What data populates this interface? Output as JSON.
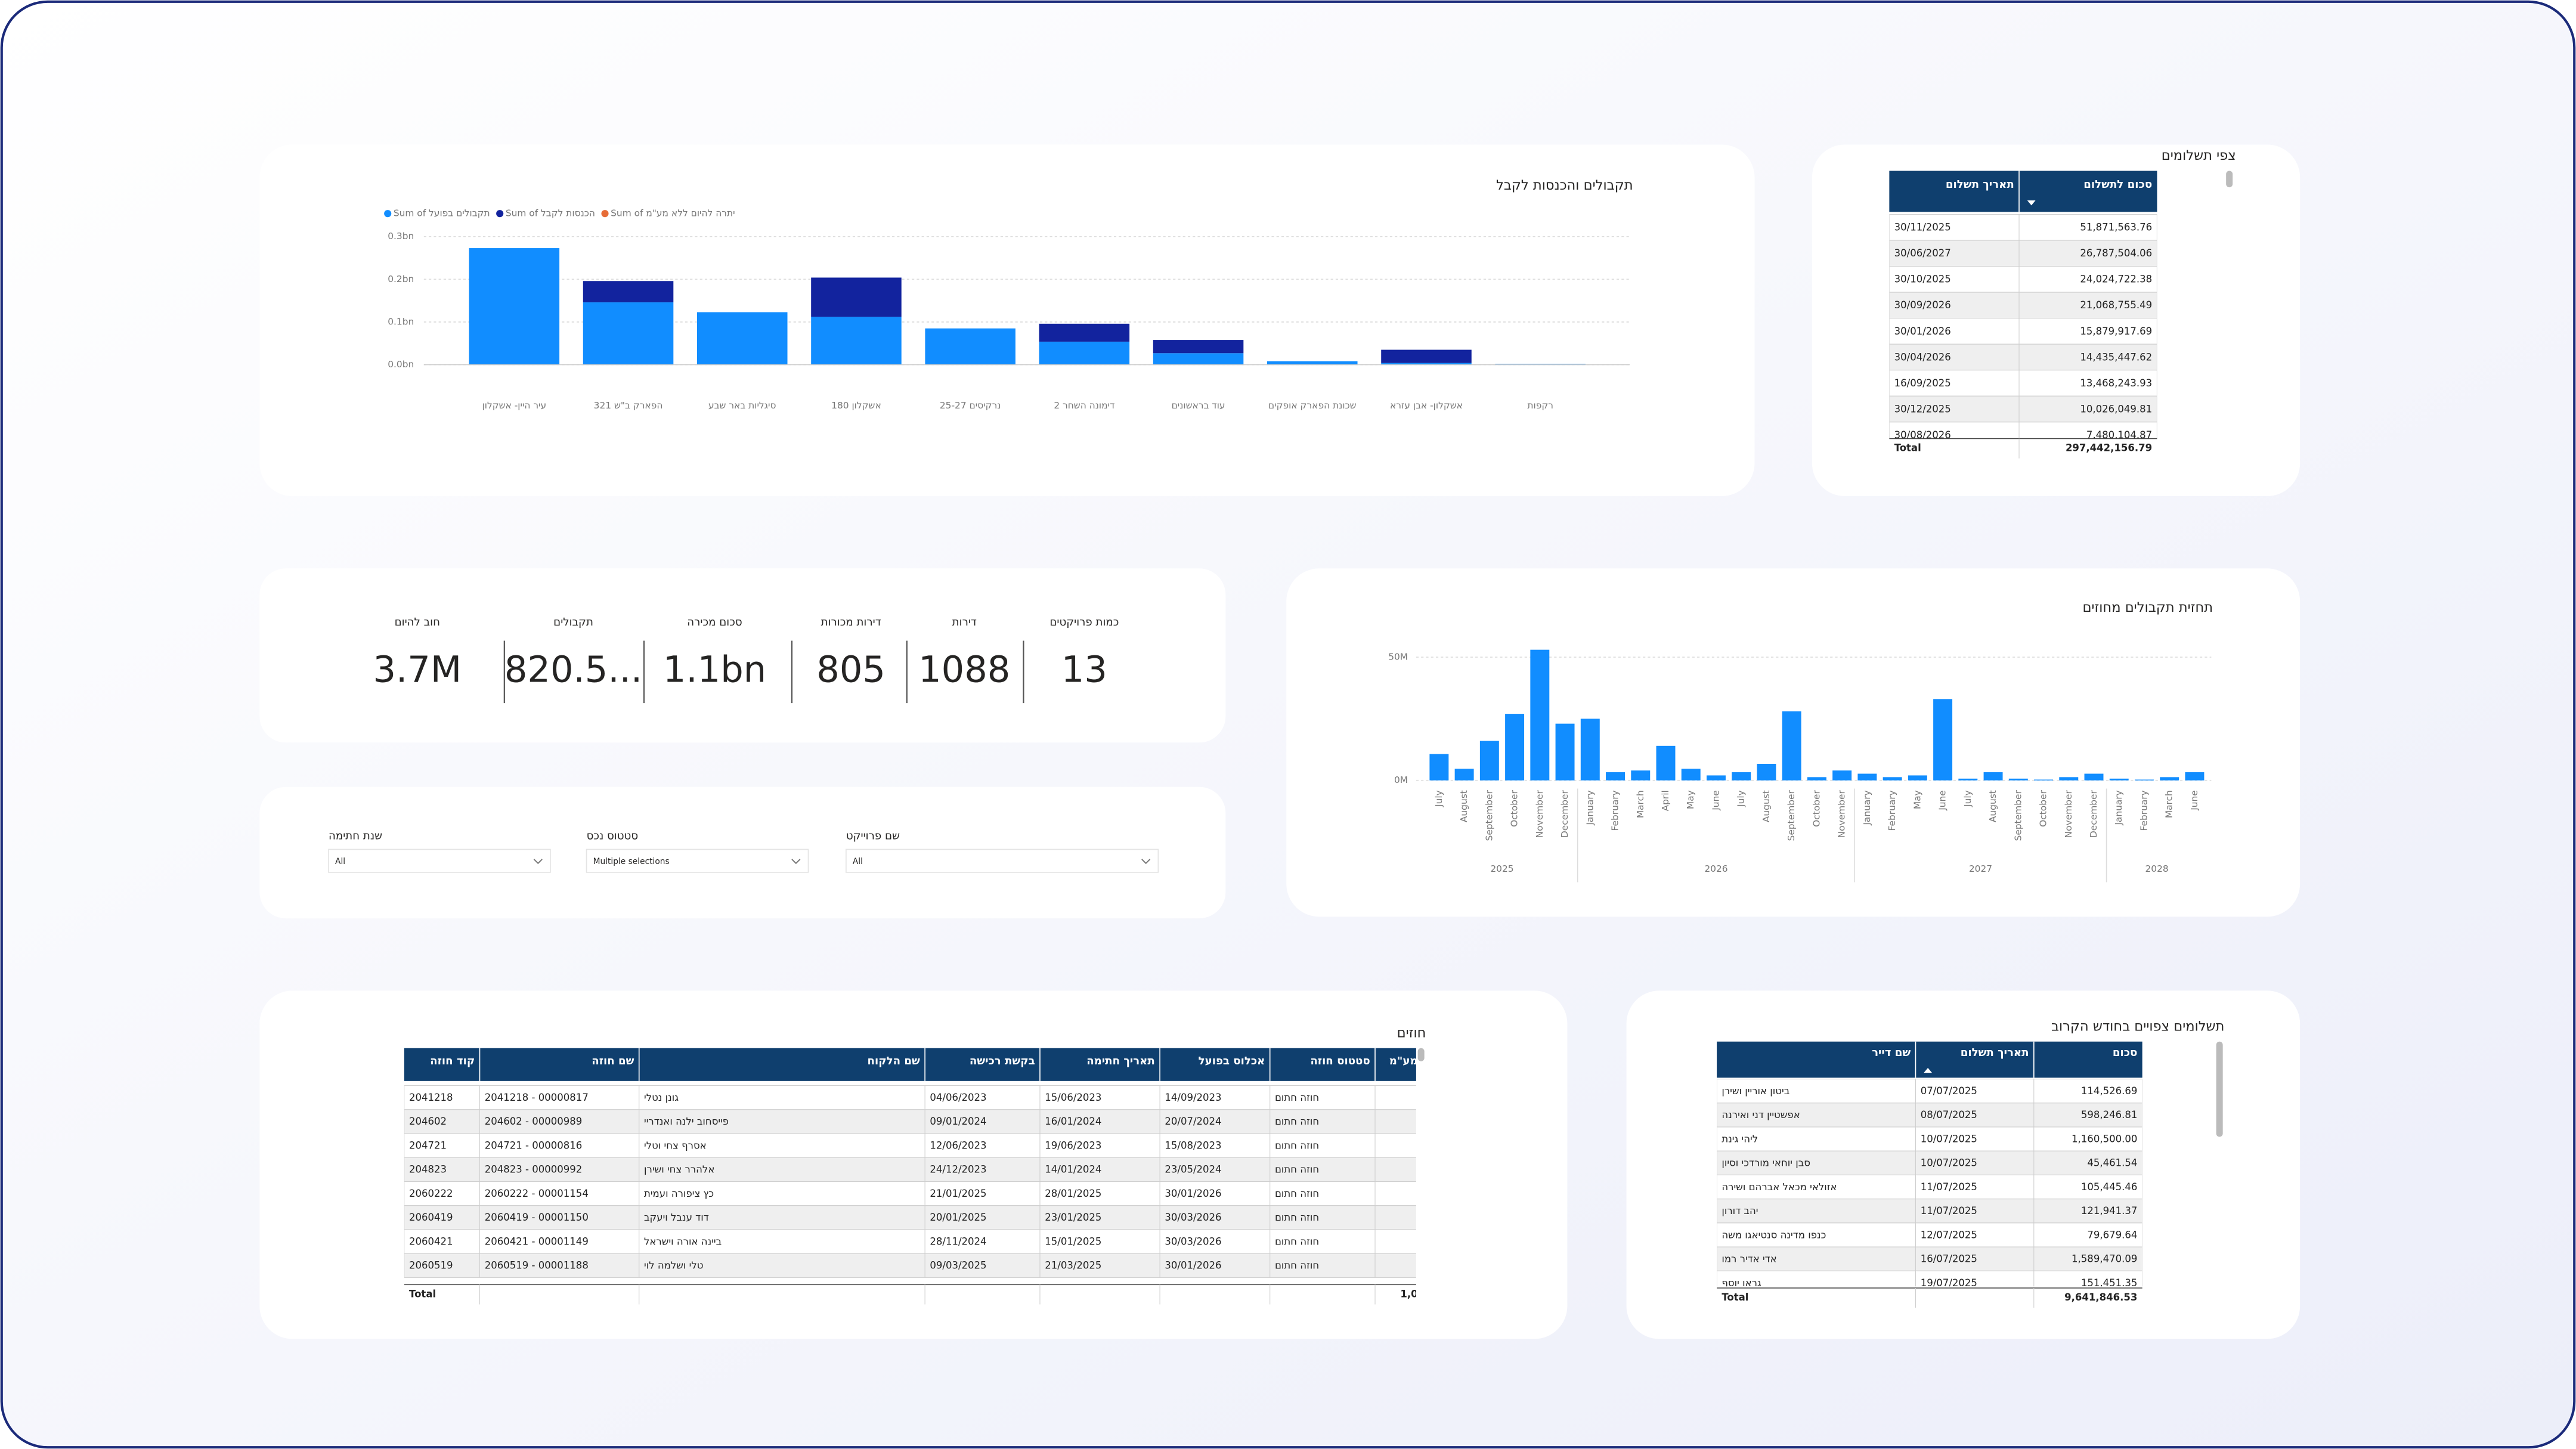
{
  "chart_data": [
    {
      "type": "bar",
      "stacked": true,
      "title": "תקבולים והכנסות לקבל",
      "categories": [
        "עיר היין- אשקלון",
        "הפארק ב\"ש 321",
        "סיגליות באר שבע",
        "אשקלון 180",
        "נרקיסים 25-27",
        "דימונה השחר 2",
        "עוד בראשונים",
        "שכונת הפארק אופקים",
        "אשקלון- אבן עזרא",
        "רקפות"
      ],
      "series": [
        {
          "name": "Sum of תקבולים בפועל",
          "color": "#118DFF",
          "values": [
            0.273,
            0.146,
            0.123,
            0.112,
            0.085,
            0.054,
            0.027,
            0.008,
            0.004,
            0.002
          ]
        },
        {
          "name": "Sum of הכנסות לקבל",
          "color": "#12239E",
          "values": [
            0,
            0.05,
            0,
            0.092,
            0,
            0.042,
            0.031,
            0,
            0.031,
            0
          ]
        },
        {
          "name": "Sum of יתרה להיום ללא מע\"מ",
          "color": "#E66C37",
          "values": [
            0,
            0,
            0,
            0,
            0,
            0,
            0,
            0,
            0,
            0
          ]
        }
      ],
      "ylim": [
        0,
        0.3
      ],
      "yticks": [
        {
          "value": 0,
          "label": "0.0bn"
        },
        {
          "value": 0.1,
          "label": "0.1bn"
        },
        {
          "value": 0.2,
          "label": "0.2bn"
        },
        {
          "value": 0.3,
          "label": "0.3bn"
        }
      ],
      "grid": true,
      "legend": "top-left"
    },
    {
      "type": "bar",
      "title": "תחזית תקבולים מחוזים",
      "color": "#118DFF",
      "groups": [
        {
          "label": "2025",
          "categories": [
            "July",
            "August",
            "September",
            "October",
            "November",
            "December"
          ],
          "values": [
            10.7,
            4.7,
            16,
            27,
            53,
            23
          ]
        },
        {
          "label": "2026",
          "categories": [
            "January",
            "February",
            "March",
            "April",
            "May",
            "June",
            "July",
            "August",
            "September",
            "October",
            "November"
          ],
          "values": [
            25,
            3.3,
            4,
            14,
            4.7,
            2,
            3.3,
            6.7,
            28,
            1.3,
            4
          ]
        },
        {
          "label": "2027",
          "categories": [
            "January",
            "February",
            "May",
            "June",
            "July",
            "August",
            "September",
            "October",
            "November",
            "December"
          ],
          "values": [
            2.7,
            1.3,
            2,
            33,
            0.7,
            3.3,
            0.7,
            0.3,
            1.3,
            2.7
          ]
        },
        {
          "label": "2028",
          "categories": [
            "January",
            "February",
            "March",
            "June"
          ],
          "values": [
            0.7,
            0.3,
            1.3,
            3.3
          ]
        }
      ],
      "ylim": [
        0,
        55
      ],
      "yticks": [
        {
          "value": 0,
          "label": "0M"
        },
        {
          "value": 50,
          "label": "50M"
        }
      ],
      "grid": true
    }
  ],
  "payments": {
    "title": "צפי תשלומים",
    "columns": [
      "תאריך תשלום",
      "סכום לתשלום"
    ],
    "rows": [
      [
        "30/11/2025",
        "51,871,563.76"
      ],
      [
        "30/06/2027",
        "26,787,504.06"
      ],
      [
        "30/10/2025",
        "24,024,722.38"
      ],
      [
        "30/09/2026",
        "21,068,755.49"
      ],
      [
        "30/01/2026",
        "15,879,917.69"
      ],
      [
        "30/04/2026",
        "14,435,447.62"
      ],
      [
        "16/09/2025",
        "13,468,243.93"
      ],
      [
        "30/12/2025",
        "10,026,049.81"
      ],
      [
        "30/08/2026",
        "7,480,104.87"
      ]
    ],
    "total_label": "Total",
    "total_value": "297,442,156.79"
  },
  "kpis": [
    {
      "label": "כמות פרויקטים",
      "value": "13"
    },
    {
      "label": "דירות",
      "value": "1088"
    },
    {
      "label": "דירות מכורות",
      "value": "805"
    },
    {
      "label": "סכום מכירה",
      "value": "1.1bn"
    },
    {
      "label": "תקבולים",
      "value": "820.5..."
    },
    {
      "label": "חוב להיום",
      "value": "3.7M"
    }
  ],
  "slicers": [
    {
      "label": "שם פרוייקט",
      "value": "All"
    },
    {
      "label": "סטטוס נכס",
      "value": "Multiple selections"
    },
    {
      "label": "שנת חתימה",
      "value": "All"
    }
  ],
  "contracts": {
    "title": "חוזים",
    "columns": [
      "קוד חוזה",
      "שם חוזה",
      "שם הלקוח",
      "בקשת רכישה",
      "תאריך חתימה",
      "אכלוס בפועל",
      "סטטוס חוזה",
      "מע\"מ"
    ],
    "rows": [
      [
        "2041218",
        "2041218 - 00000817",
        "גונן נטלי",
        "04/06/2023",
        "15/06/2023",
        "14/09/2023",
        "חוזה חתום"
      ],
      [
        "204602",
        "204602 - 00000989",
        "פייסחוב ילנה ואנדריי",
        "09/01/2024",
        "16/01/2024",
        "20/07/2024",
        "חוזה חתום"
      ],
      [
        "204721",
        "204721 - 00000816",
        "אסרף צחי וטלי",
        "12/06/2023",
        "19/06/2023",
        "15/08/2023",
        "חוזה חתום"
      ],
      [
        "204823",
        "204823 - 00000992",
        "אלהרר צחי ושירן",
        "24/12/2023",
        "14/01/2024",
        "23/05/2024",
        "חוזה חתום"
      ],
      [
        "2060222",
        "2060222 - 00001154",
        "כץ ציפורה ועמית",
        "21/01/2025",
        "28/01/2025",
        "30/01/2026",
        "חוזה חתום"
      ],
      [
        "2060419",
        "2060419 - 00001150",
        "דוד ענבל ויעקב",
        "20/01/2025",
        "23/01/2025",
        "30/03/2026",
        "חוזה חתום"
      ],
      [
        "2060421",
        "2060421 - 00001149",
        "ביינה אורה וישראל",
        "28/11/2024",
        "15/01/2025",
        "30/03/2026",
        "חוזה חתום"
      ],
      [
        "2060519",
        "2060519 - 00001188",
        "טלי ושלמה לוי",
        "09/03/2025",
        "21/03/2025",
        "30/01/2026",
        "חוזה חתום"
      ]
    ],
    "total_label": "Total",
    "total_value": "1,0"
  },
  "upcoming": {
    "title": "תשלומים צפויים בחודש הקרוב",
    "columns": [
      "שם דייר",
      "תאריך תשלום",
      "סכום"
    ],
    "rows": [
      [
        "ביטון אוריין ושירן",
        "07/07/2025",
        "114,526.69"
      ],
      [
        "אפשטיין דני ואירנה",
        "08/07/2025",
        "598,246.81"
      ],
      [
        "ליהי גינת",
        "10/07/2025",
        "1,160,500.00"
      ],
      [
        "סבן יוחאי מורדכי וסיון",
        "10/07/2025",
        "45,461.54"
      ],
      [
        "אזולאי מכאל אברהם ושירה",
        "11/07/2025",
        "105,445.46"
      ],
      [
        "יהב דורון",
        "11/07/2025",
        "121,941.37"
      ],
      [
        "כנפו מדינה סנטיאגו משה",
        "12/07/2025",
        "79,679.64"
      ],
      [
        "אדי אדיר רמו",
        "16/07/2025",
        "1,589,470.09"
      ],
      [
        "גראו יוסף",
        "19/07/2025",
        "151,451.35"
      ]
    ],
    "total_label": "Total",
    "total_value": "9,641,846.53"
  }
}
